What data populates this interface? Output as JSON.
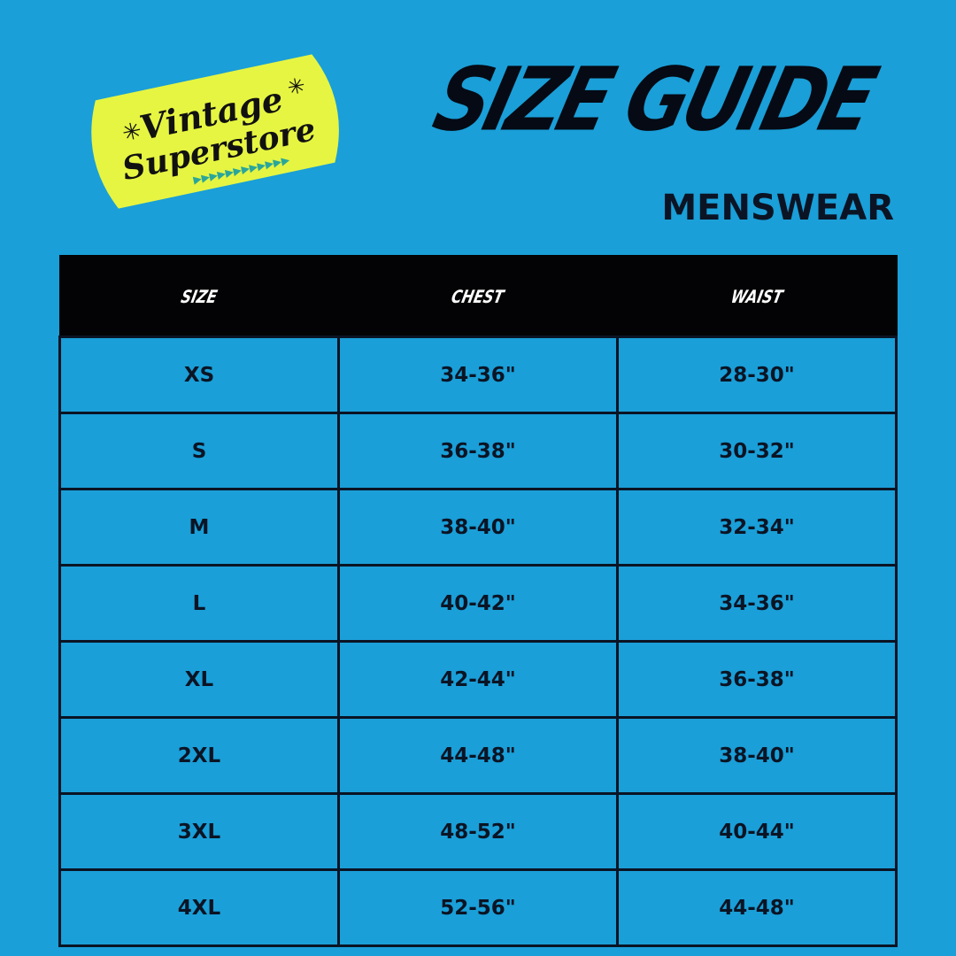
{
  "logo": {
    "line1": "Vintage",
    "line2": "Superstore",
    "bg_color": "#e6f542",
    "accent_color": "#2aa69a"
  },
  "header": {
    "title": "SIZE GUIDE",
    "subtitle": "MENSWEAR"
  },
  "table": {
    "columns": [
      "SIZE",
      "CHEST",
      "WAIST"
    ],
    "rows": [
      [
        "XS",
        "34-36\"",
        "28-30\""
      ],
      [
        "S",
        "36-38\"",
        "30-32\""
      ],
      [
        "M",
        "38-40\"",
        "32-34\""
      ],
      [
        "L",
        "40-42\"",
        "34-36\""
      ],
      [
        "XL",
        "42-44\"",
        "36-38\""
      ],
      [
        "2XL",
        "44-48\"",
        "38-40\""
      ],
      [
        "3XL",
        "48-52\"",
        "40-44\""
      ],
      [
        "4XL",
        "52-56\"",
        "44-48\""
      ]
    ]
  },
  "colors": {
    "background": "#1a9fd8",
    "header_bg": "#030305",
    "text": "#0b1424"
  }
}
